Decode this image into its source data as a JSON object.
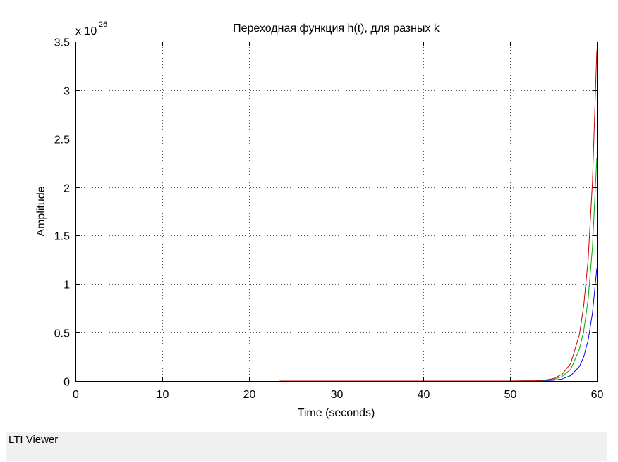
{
  "status_bar": {
    "text": "LTI Viewer"
  },
  "chart_data": {
    "type": "line",
    "title": "Переходная функция h(t), для разных k",
    "xlabel": "Time (seconds)",
    "ylabel": "Amplitude",
    "y_exponent_label": "x 10",
    "y_exponent_power": "26",
    "xlim": [
      0,
      60
    ],
    "ylim": [
      0,
      3.5
    ],
    "x_ticks": [
      0,
      10,
      20,
      30,
      40,
      50,
      60
    ],
    "x_tick_labels": [
      "0",
      "10",
      "20",
      "30",
      "40",
      "50",
      "60"
    ],
    "y_ticks": [
      0,
      0.5,
      1,
      1.5,
      2,
      2.5,
      3,
      3.5
    ],
    "y_tick_labels": [
      "0",
      "0.5",
      "1",
      "1.5",
      "2",
      "2.5",
      "3",
      "3.5"
    ],
    "grid": true,
    "series": [
      {
        "color": "#0000ff",
        "x": [
          23.5,
          30,
          40,
          50,
          53,
          54,
          55,
          56,
          57,
          58,
          58.5,
          59,
          59.5,
          60
        ],
        "y": [
          0,
          0,
          0,
          0,
          0.001,
          0.003,
          0.008,
          0.02,
          0.055,
          0.15,
          0.25,
          0.42,
          0.7,
          1.16
        ]
      },
      {
        "color": "#00aa00",
        "x": [
          23.5,
          30,
          40,
          50,
          53,
          54,
          55,
          56,
          57,
          58,
          58.5,
          59,
          59.5,
          60
        ],
        "y": [
          0,
          0,
          0,
          0,
          0.002,
          0.006,
          0.017,
          0.045,
          0.12,
          0.33,
          0.52,
          0.84,
          1.38,
          2.3
        ]
      },
      {
        "color": "#cc0000",
        "x": [
          23.5,
          30,
          40,
          50,
          53,
          54,
          55,
          56,
          57,
          58,
          58.5,
          59,
          59.5,
          60
        ],
        "y": [
          0,
          0,
          0,
          0,
          0.003,
          0.009,
          0.025,
          0.068,
          0.18,
          0.48,
          0.78,
          1.25,
          2.05,
          3.41
        ]
      }
    ]
  }
}
